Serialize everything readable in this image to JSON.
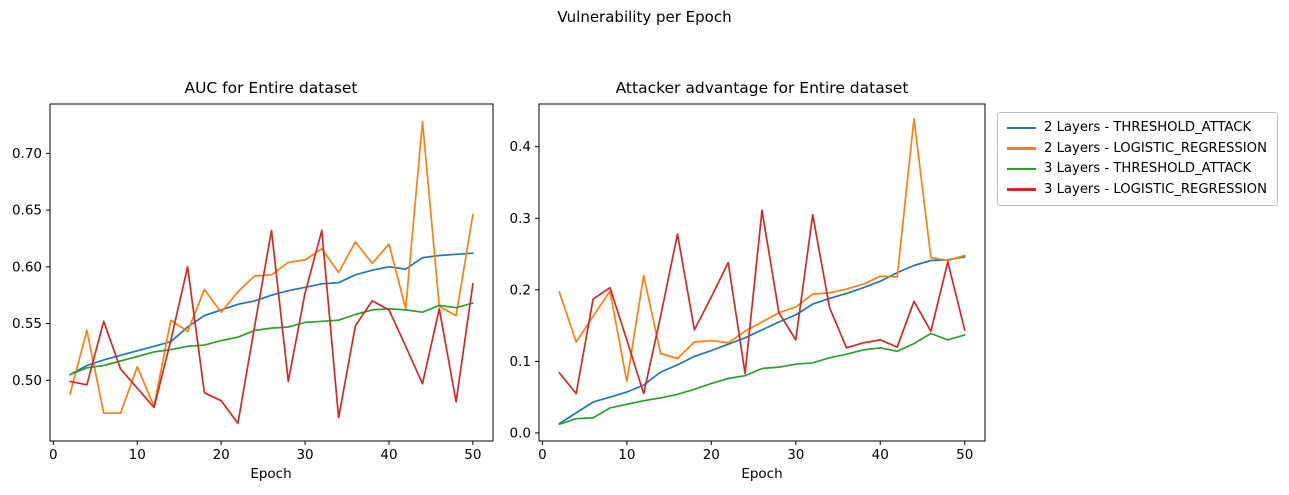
{
  "figure": {
    "title": "Vulnerability per Epoch"
  },
  "legend": {
    "position": "outside-right-top",
    "entries": [
      {
        "label": "2 Layers - THRESHOLD_ATTACK",
        "color": "#1f77b4"
      },
      {
        "label": "2 Layers - LOGISTIC_REGRESSION",
        "color": "#ff7f0e"
      },
      {
        "label": "3 Layers - THRESHOLD_ATTACK",
        "color": "#2ca02c"
      },
      {
        "label": "3 Layers - LOGISTIC_REGRESSION",
        "color": "#d62728"
      }
    ]
  },
  "chart_data": [
    {
      "type": "line",
      "title": "AUC for Entire dataset",
      "xlabel": "Epoch",
      "ylabel": "",
      "grid": false,
      "x": [
        2,
        4,
        6,
        8,
        10,
        12,
        14,
        16,
        18,
        20,
        22,
        24,
        26,
        28,
        30,
        32,
        34,
        36,
        38,
        40,
        42,
        44,
        46,
        48,
        50
      ],
      "xlim": [
        -0.4,
        52.4
      ],
      "ylim": [
        0.4465,
        0.7435
      ],
      "xticks": {
        "values": [
          0,
          10,
          20,
          30,
          40,
          50
        ],
        "labels": [
          "0",
          "10",
          "20",
          "30",
          "40",
          "50"
        ]
      },
      "yticks": {
        "values": [
          0.5,
          0.55,
          0.6,
          0.65,
          0.7
        ],
        "labels": [
          "0.50",
          "0.55",
          "0.60",
          "0.65",
          "0.70"
        ]
      },
      "series": [
        {
          "name": "2 Layers - THRESHOLD_ATTACK",
          "color": "#1f77b4",
          "values": [
            0.505,
            0.513,
            0.518,
            0.522,
            0.526,
            0.53,
            0.534,
            0.547,
            0.557,
            0.562,
            0.567,
            0.57,
            0.575,
            0.579,
            0.582,
            0.585,
            0.586,
            0.593,
            0.597,
            0.6,
            0.598,
            0.608,
            0.61,
            0.611,
            0.612
          ]
        },
        {
          "name": "2 Layers - LOGISTIC_REGRESSION",
          "color": "#ff7f0e",
          "values": [
            0.488,
            0.544,
            0.471,
            0.471,
            0.512,
            0.477,
            0.553,
            0.543,
            0.58,
            0.56,
            0.578,
            0.592,
            0.593,
            0.604,
            0.606,
            0.616,
            0.595,
            0.622,
            0.603,
            0.62,
            0.563,
            0.728,
            0.565,
            0.557,
            0.646
          ]
        },
        {
          "name": "3 Layers - THRESHOLD_ATTACK",
          "color": "#2ca02c",
          "values": [
            0.505,
            0.511,
            0.513,
            0.517,
            0.521,
            0.525,
            0.527,
            0.53,
            0.531,
            0.535,
            0.538,
            0.544,
            0.546,
            0.547,
            0.551,
            0.552,
            0.553,
            0.558,
            0.562,
            0.563,
            0.562,
            0.56,
            0.566,
            0.564,
            0.568
          ]
        },
        {
          "name": "3 Layers - LOGISTIC_REGRESSION",
          "color": "#d62728",
          "values": [
            0.499,
            0.496,
            0.552,
            0.51,
            0.493,
            0.476,
            0.535,
            0.6,
            0.489,
            0.482,
            0.462,
            0.548,
            0.632,
            0.499,
            0.577,
            0.632,
            0.467,
            0.548,
            0.57,
            0.562,
            0.53,
            0.497,
            0.563,
            0.481,
            0.585
          ]
        }
      ]
    },
    {
      "type": "line",
      "title": "Attacker advantage for Entire dataset",
      "xlabel": "Epoch",
      "ylabel": "",
      "grid": false,
      "x": [
        2,
        4,
        6,
        8,
        10,
        12,
        14,
        16,
        18,
        20,
        22,
        24,
        26,
        28,
        30,
        32,
        34,
        36,
        38,
        40,
        42,
        44,
        46,
        48,
        50
      ],
      "xlim": [
        -0.4,
        52.4
      ],
      "ylim": [
        -0.0113,
        0.4597
      ],
      "xticks": {
        "values": [
          0,
          10,
          20,
          30,
          40,
          50
        ],
        "labels": [
          "0",
          "10",
          "20",
          "30",
          "40",
          "50"
        ]
      },
      "yticks": {
        "values": [
          0.0,
          0.1,
          0.2,
          0.3,
          0.4
        ],
        "labels": [
          "0.0",
          "0.1",
          "0.2",
          "0.3",
          "0.4"
        ]
      },
      "series": [
        {
          "name": "2 Layers - THRESHOLD_ATTACK",
          "color": "#1f77b4",
          "values": [
            0.013,
            0.028,
            0.043,
            0.05,
            0.057,
            0.067,
            0.085,
            0.095,
            0.107,
            0.115,
            0.124,
            0.133,
            0.144,
            0.155,
            0.165,
            0.18,
            0.188,
            0.195,
            0.203,
            0.212,
            0.224,
            0.234,
            0.241,
            0.242,
            0.246
          ]
        },
        {
          "name": "2 Layers - LOGISTIC_REGRESSION",
          "color": "#ff7f0e",
          "values": [
            0.197,
            0.127,
            0.163,
            0.198,
            0.072,
            0.22,
            0.111,
            0.104,
            0.127,
            0.129,
            0.126,
            0.142,
            0.155,
            0.168,
            0.176,
            0.194,
            0.196,
            0.201,
            0.208,
            0.219,
            0.218,
            0.439,
            0.245,
            0.241,
            0.248
          ]
        },
        {
          "name": "3 Layers - THRESHOLD_ATTACK",
          "color": "#2ca02c",
          "values": [
            0.012,
            0.02,
            0.021,
            0.035,
            0.04,
            0.045,
            0.049,
            0.054,
            0.061,
            0.069,
            0.076,
            0.08,
            0.09,
            0.092,
            0.096,
            0.098,
            0.105,
            0.11,
            0.116,
            0.119,
            0.114,
            0.125,
            0.139,
            0.13,
            0.137
          ]
        },
        {
          "name": "3 Layers - LOGISTIC_REGRESSION",
          "color": "#d62728",
          "values": [
            0.084,
            0.055,
            0.187,
            0.203,
            0.13,
            0.055,
            0.163,
            0.278,
            0.144,
            0.19,
            0.238,
            0.083,
            0.311,
            0.168,
            0.13,
            0.305,
            0.175,
            0.119,
            0.126,
            0.13,
            0.12,
            0.184,
            0.142,
            0.239,
            0.144
          ]
        }
      ]
    }
  ]
}
